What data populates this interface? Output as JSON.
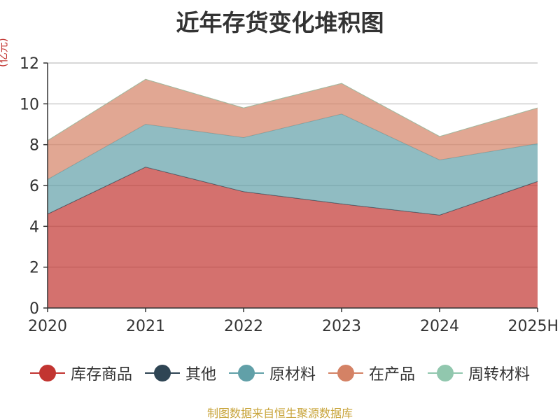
{
  "title": "近年存货变化堆积图",
  "unit": "(亿元)",
  "footer": "制图数据来自恒生聚源数据库",
  "colors": {
    "axis": "#333333",
    "grid": "#cccccc",
    "unit": "#c23531"
  },
  "chart_data": {
    "type": "area",
    "stacked": true,
    "title": "近年存货变化堆积图",
    "ylabel": "(亿元)",
    "xlabel": "",
    "categories": [
      "2020",
      "2021",
      "2022",
      "2023",
      "2024",
      "2025H"
    ],
    "ylim": [
      0,
      12
    ],
    "yticks": [
      0,
      2,
      4,
      6,
      8,
      10,
      12
    ],
    "grid": true,
    "legend_position": "bottom",
    "series": [
      {
        "name": "库存商品",
        "color": "#c23531",
        "values": [
          4.6,
          6.9,
          5.7,
          5.1,
          4.55,
          6.2
        ]
      },
      {
        "name": "其他",
        "color": "#2f4554",
        "values": [
          0.0,
          0.0,
          0.0,
          0.0,
          0.0,
          0.0
        ]
      },
      {
        "name": "原材料",
        "color": "#61a0a8",
        "values": [
          1.7,
          2.1,
          2.65,
          4.4,
          2.7,
          1.85
        ]
      },
      {
        "name": "在产品",
        "color": "#d48265",
        "values": [
          1.9,
          2.2,
          1.45,
          1.5,
          1.15,
          1.75
        ]
      },
      {
        "name": "周转材料",
        "color": "#91c7ae",
        "values": [
          0.0,
          0.0,
          0.0,
          0.0,
          0.0,
          0.0
        ]
      }
    ]
  }
}
